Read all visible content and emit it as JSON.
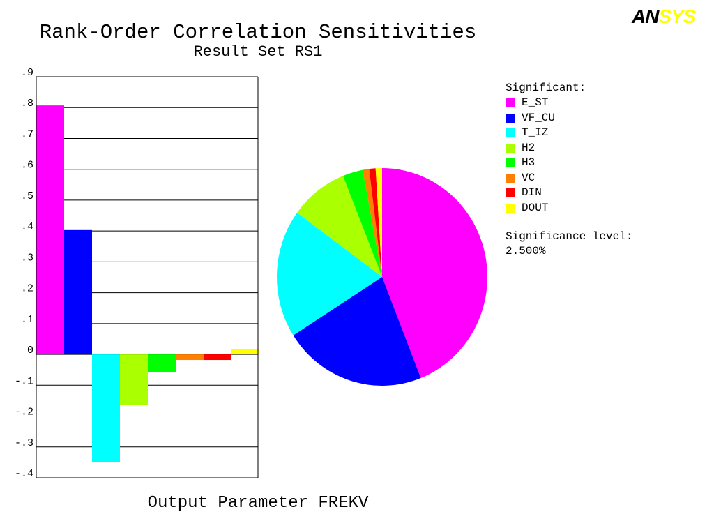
{
  "logo": {
    "part1": "AN",
    "part2": "SYS"
  },
  "chart_data": {
    "type": "bar",
    "title": "Rank-Order Correlation Sensitivities",
    "subtitle": "Result Set RS1",
    "xlabel": "Output Parameter FREKV",
    "ylim": [
      -0.4,
      0.9
    ],
    "y_ticks": [
      {
        "value": 0.9,
        "label": ".9"
      },
      {
        "value": 0.8,
        "label": ".8"
      },
      {
        "value": 0.7,
        "label": ".7"
      },
      {
        "value": 0.6,
        "label": ".6"
      },
      {
        "value": 0.5,
        "label": ".5"
      },
      {
        "value": 0.4,
        "label": ".4"
      },
      {
        "value": 0.3,
        "label": ".3"
      },
      {
        "value": 0.2,
        "label": ".2"
      },
      {
        "value": 0.1,
        "label": ".1"
      },
      {
        "value": 0.0,
        "label": "0"
      },
      {
        "value": -0.1,
        "label": "-.1"
      },
      {
        "value": -0.2,
        "label": "-.2"
      },
      {
        "value": -0.3,
        "label": "-.3"
      },
      {
        "value": -0.4,
        "label": "-.4"
      }
    ],
    "grid": true,
    "legend_title": "Significant:",
    "legend_position": "right",
    "series": [
      {
        "name": "E_ST",
        "value": 0.807,
        "color": "#ff00ff"
      },
      {
        "name": "VF_CU",
        "value": 0.403,
        "color": "#0000ff"
      },
      {
        "name": "T_IZ",
        "value": -0.35,
        "color": "#00ffff"
      },
      {
        "name": "H2",
        "value": -0.163,
        "color": "#aaff00"
      },
      {
        "name": "H3",
        "value": -0.057,
        "color": "#00ff00"
      },
      {
        "name": "VC",
        "value": -0.018,
        "color": "#ff8000"
      },
      {
        "name": "DIN",
        "value": -0.018,
        "color": "#ff0000"
      },
      {
        "name": "DOUT",
        "value": 0.018,
        "color": "#ffff00"
      }
    ],
    "pie": "absolute values of sensitivities",
    "significance_label": "Significance level:",
    "significance_value": "2.500%"
  }
}
